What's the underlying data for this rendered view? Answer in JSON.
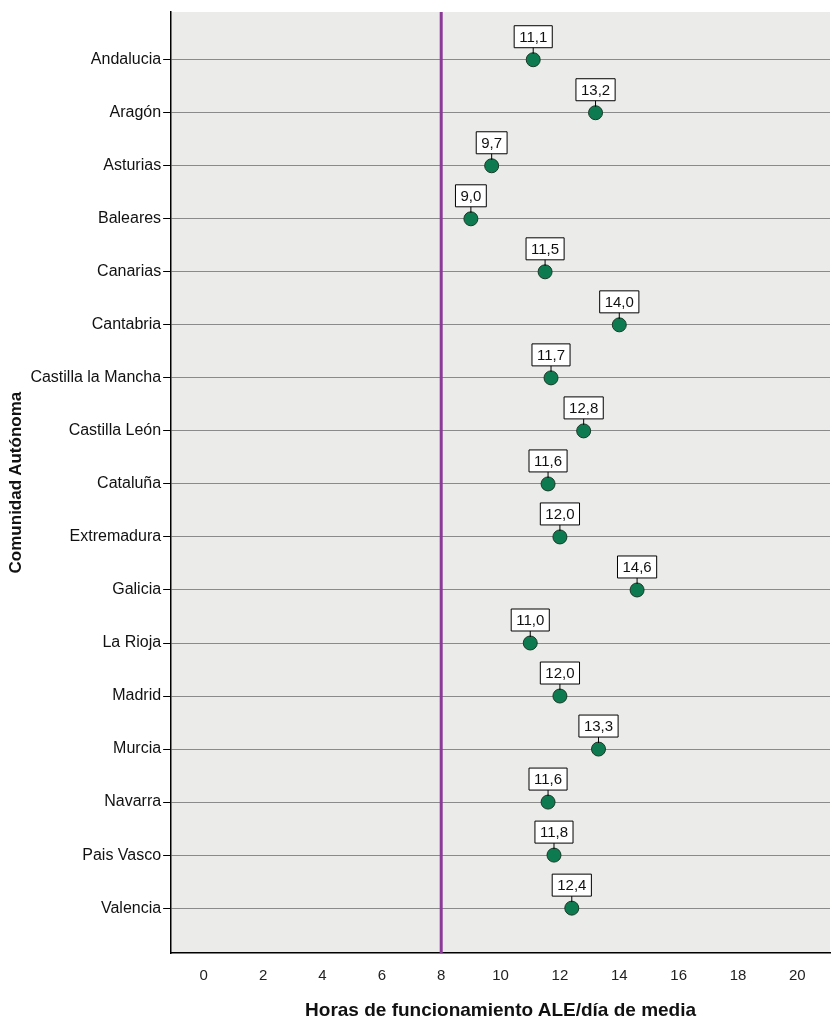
{
  "chart_data": {
    "type": "scatter",
    "orientation": "horizontal",
    "xlabel": "Horas de funcionamiento ALE/día de media",
    "ylabel": "Comunidad Autónoma",
    "categories": [
      "Andalucia",
      "Aragón",
      "Asturias",
      "Baleares",
      "Canarias",
      "Cantabria",
      "Castilla la Mancha",
      "Castilla León",
      "Cataluña",
      "Extremadura",
      "Galicia",
      "La Rioja",
      "Madrid",
      "Murcia",
      "Navarra",
      "Pais Vasco",
      "Valencia"
    ],
    "values": [
      11.1,
      13.2,
      9.7,
      9.0,
      11.5,
      14.0,
      11.7,
      12.8,
      11.6,
      12.0,
      14.6,
      11.0,
      12.0,
      13.3,
      11.6,
      11.8,
      12.4
    ],
    "value_labels": [
      "11,1",
      "13,2",
      "9,7",
      "9,0",
      "11,5",
      "14,0",
      "11,7",
      "12,8",
      "11,6",
      "12,0",
      "14,6",
      "11,0",
      "12,0",
      "13,3",
      "11,6",
      "11,8",
      "12,4"
    ],
    "color": "#0e7a50",
    "marker": "circle",
    "xlim": [
      -1.1,
      21.1
    ],
    "xticks": [
      0,
      2,
      4,
      6,
      8,
      10,
      12,
      14,
      16,
      18,
      20
    ],
    "ref_lines": [
      {
        "axis": "x",
        "value": 8,
        "color": "#8b3a98"
      }
    ],
    "grid": "y"
  }
}
